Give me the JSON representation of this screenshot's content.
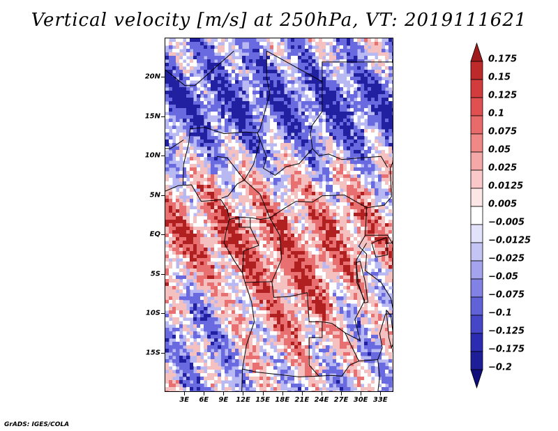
{
  "title": "Vertical velocity [m/s] at 250hPa, VT: 2019111621",
  "credit": "GrADS: IGES/COLA",
  "map": {
    "lat_range": [
      -20,
      25
    ],
    "lon_range": [
      0,
      35
    ],
    "lat_labels": [
      {
        "lat": 20,
        "text": "20N"
      },
      {
        "lat": 15,
        "text": "15N"
      },
      {
        "lat": 10,
        "text": "10N"
      },
      {
        "lat": 5,
        "text": "5N"
      },
      {
        "lat": 0,
        "text": "EQ"
      },
      {
        "lat": -5,
        "text": "5S"
      },
      {
        "lat": -10,
        "text": "10S"
      },
      {
        "lat": -15,
        "text": "15S"
      }
    ],
    "lon_labels": [
      {
        "lon": 3,
        "text": "3E"
      },
      {
        "lon": 6,
        "text": "6E"
      },
      {
        "lon": 9,
        "text": "9E"
      },
      {
        "lon": 12,
        "text": "12E"
      },
      {
        "lon": 15,
        "text": "15E"
      },
      {
        "lon": 18,
        "text": "18E"
      },
      {
        "lon": 21,
        "text": "21E"
      },
      {
        "lon": 24,
        "text": "24E"
      },
      {
        "lon": 27,
        "text": "27E"
      },
      {
        "lon": 30,
        "text": "30E"
      },
      {
        "lon": 33,
        "text": "33E"
      }
    ]
  },
  "colorbar": {
    "levels": [
      "0.175",
      "0.15",
      "0.125",
      "0.1",
      "0.075",
      "0.05",
      "0.025",
      "0.0125",
      "0.005",
      "−0.005",
      "−0.0125",
      "−0.025",
      "−0.05",
      "−0.075",
      "−0.1",
      "−0.125",
      "−0.175",
      "−0.2"
    ],
    "colors": [
      "#a01c1c",
      "#be2a2a",
      "#d23c3c",
      "#e05050",
      "#e86a6a",
      "#f08888",
      "#f5a8a8",
      "#fac8c8",
      "#fde6e6",
      "#ffffff",
      "#e2e2fb",
      "#c4c4f5",
      "#a4a4ee",
      "#8282e4",
      "#6262d8",
      "#4646c8",
      "#2c2cb2",
      "#1e1e98",
      "#100e7a"
    ]
  },
  "field_colors": {
    "strong_down": "#2020a0",
    "down": "#6a6ae0",
    "weak_down": "#b8b8f2",
    "neutral": "#ffffff",
    "weak_up": "#f5c0c0",
    "up": "#e87070",
    "strong_up": "#b02020",
    "border": "#000000"
  }
}
